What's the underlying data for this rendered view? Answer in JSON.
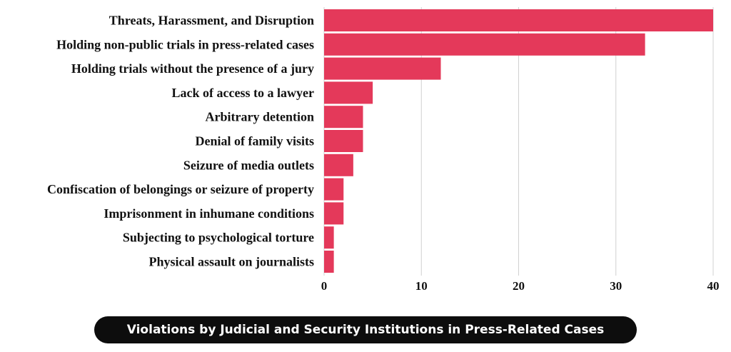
{
  "chart_data": {
    "type": "bar",
    "orientation": "horizontal",
    "title": "Violations by Judicial and Security Institutions in Press-Related Cases",
    "categories": [
      "Threats, Harassment, and Disruption",
      "Holding non-public trials in press-related cases",
      "Holding trials without the presence of a jury",
      "Lack of access to a lawyer",
      "Arbitrary detention",
      "Denial of family visits",
      "Seizure of media outlets",
      "Confiscation of belongings or seizure of property",
      "Imprisonment in inhumane conditions",
      "Subjecting to psychological torture",
      "Physical assault on journalists"
    ],
    "values": [
      40,
      33,
      12,
      5,
      4,
      4,
      3,
      2,
      2,
      1,
      1
    ],
    "xlim": [
      0,
      40
    ],
    "xticks": [
      "0",
      "10",
      "20",
      "30",
      "40"
    ],
    "grid": true,
    "bar_color": "#e4395a"
  }
}
